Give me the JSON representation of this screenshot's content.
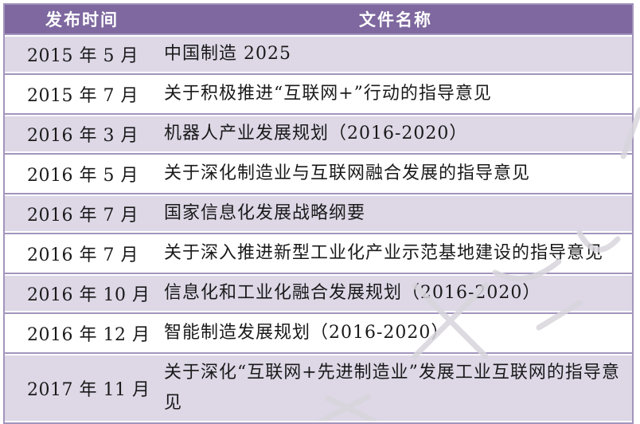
{
  "table": {
    "headers": {
      "time": "发布时间",
      "name": "文件名称"
    },
    "rows": [
      {
        "time": "2015 年 5 月",
        "name": "中国制造 2025"
      },
      {
        "time": "2015 年 7 月",
        "name": "关于积极推进“互联网+”行动的指导意见"
      },
      {
        "time": "2016 年 3 月",
        "name": "机器人产业发展规划（2016-2020）"
      },
      {
        "time": "2016 年 5 月",
        "name": "关于深化制造业与互联网融合发展的指导意见"
      },
      {
        "time": "2016 年 7 月",
        "name": "国家信息化发展战略纲要"
      },
      {
        "time": "2016 年 7 月",
        "name": "关于深入推进新型工业化产业示范基地建设的指导意见"
      },
      {
        "time": "2016 年 10 月",
        "name": "信息化和工业化融合发展规划（2016-2020）"
      },
      {
        "time": "2016 年 12 月",
        "name": "智能制造发展规划（2016-2020）"
      },
      {
        "time": "2017 年 11 月",
        "name": "关于深化“互联网+先进制造业”发展工业互联网的指导意见"
      }
    ]
  },
  "colors": {
    "header_bg": "#7e689f",
    "header_text": "#ffffff",
    "row_alt_bg": "#ddd7e6",
    "row_bg": "#ffffff",
    "border": "#a295bd",
    "text": "#1a1a1a",
    "watermark": "#d8d5dc"
  },
  "watermark": {
    "description": "faint diagonal gray watermark strokes over lower-right of table"
  }
}
